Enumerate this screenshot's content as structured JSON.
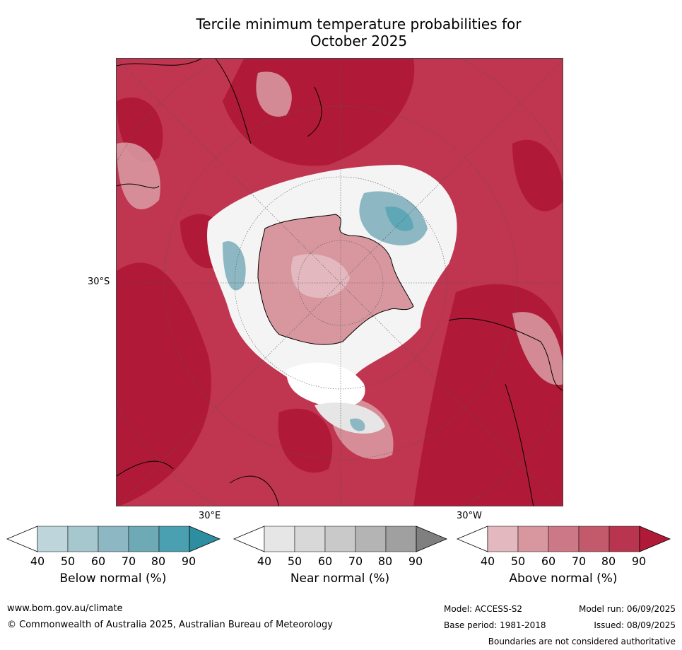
{
  "title_line1": "Tercile minimum temperature probabilities for",
  "title_line2": "October 2025",
  "map": {
    "lat_label": "30°S",
    "lon_label_left": "30°E",
    "lon_label_right": "30°W"
  },
  "colorbars": [
    {
      "label": "Below normal (%)",
      "ticks": [
        "40",
        "50",
        "60",
        "70",
        "80",
        "90"
      ],
      "colors": [
        "#ffffff",
        "#bdd5db",
        "#a7c7ce",
        "#8db7c2",
        "#6eaab6",
        "#4aa0b0",
        "#2d8ea1"
      ]
    },
    {
      "label": "Near normal (%)",
      "ticks": [
        "40",
        "50",
        "60",
        "70",
        "80",
        "90"
      ],
      "colors": [
        "#ffffff",
        "#e6e6e6",
        "#d8d8d8",
        "#c9c9c9",
        "#b4b4b4",
        "#a0a0a0",
        "#7f7f7f"
      ]
    },
    {
      "label": "Above normal (%)",
      "ticks": [
        "40",
        "50",
        "60",
        "70",
        "80",
        "90"
      ],
      "colors": [
        "#ffffff",
        "#e3b8bf",
        "#d8979f",
        "#cc7886",
        "#c25a6b",
        "#b9344f",
        "#b01a38"
      ]
    }
  ],
  "footer": {
    "website": "www.bom.gov.au/climate",
    "copyright": "© Commonwealth of Australia 2025, Australian Bureau of Meteorology",
    "model": "Model: ACCESS-S2",
    "model_run": "Model run: 06/09/2025",
    "base_period": "Base period: 1981-2018",
    "issued": "Issued: 08/09/2025",
    "disclaimer": "Boundaries are not considered authoritative"
  }
}
